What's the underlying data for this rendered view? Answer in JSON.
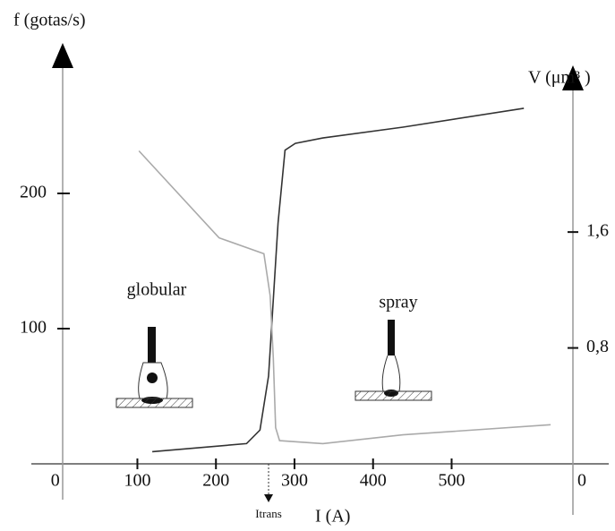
{
  "chart_data": {
    "type": "line",
    "y_label": "f (gotas/s)",
    "y2_label": "V (μm³ )",
    "x_label": "I (A)",
    "xlim": [
      -35,
      700
    ],
    "ylim": [
      0,
      300
    ],
    "y2lim": [
      0,
      2.8
    ],
    "xticks": [
      0,
      100,
      200,
      300,
      400,
      500
    ],
    "yticks": [
      100,
      200
    ],
    "y2ticks": [
      0,
      {
        "value": 0.8,
        "label": "0,8"
      },
      {
        "value": 1.6,
        "label": "1,6"
      }
    ],
    "series": [
      {
        "color": "#333333",
        "x": [
          119,
          239,
          256,
          267,
          279,
          288,
          301,
          336,
          438,
          592
        ],
        "values": [
          9,
          15,
          25,
          65,
          178,
          232,
          237,
          241,
          249,
          263
        ]
      },
      {
        "color": "#aaaaaa",
        "axis": "y2",
        "x": [
          102,
          204,
          261,
          269,
          273,
          276,
          281,
          336,
          438,
          626
        ],
        "values": [
          2.16,
          1.56,
          1.45,
          1.16,
          0.73,
          0.25,
          0.16,
          0.14,
          0.2,
          0.27
        ]
      }
    ],
    "annotations": [
      {
        "text": "globular"
      },
      {
        "text": "spray"
      },
      {
        "text": "Itrans",
        "x": 267
      }
    ]
  }
}
